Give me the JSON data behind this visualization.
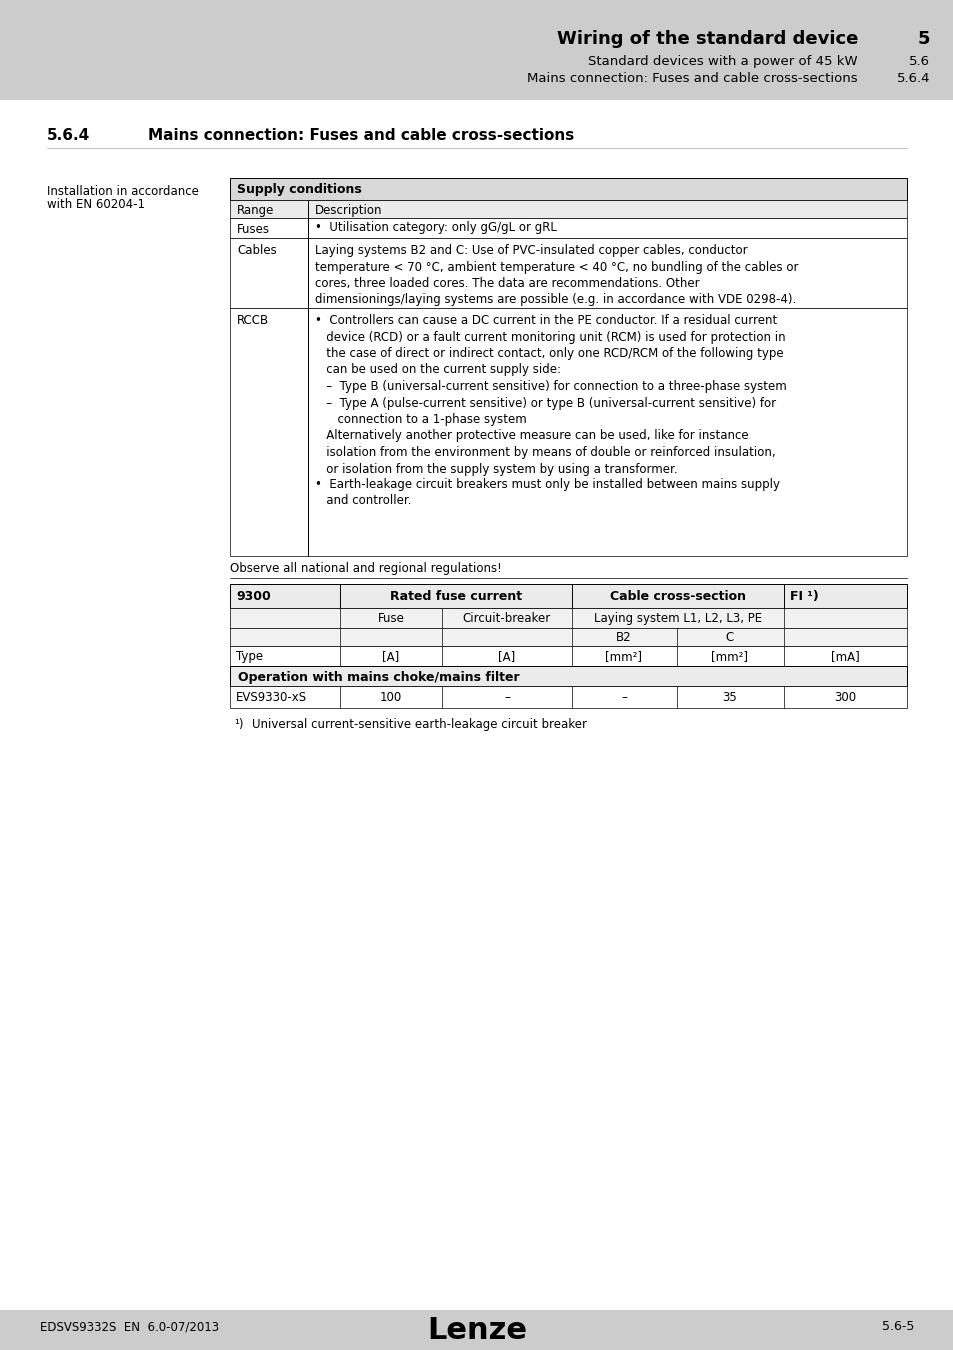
{
  "header_bg": "#cccccc",
  "header_title": "Wiring of the standard device",
  "header_num": "5",
  "header_sub1": "Standard devices with a power of 45 kW",
  "header_sub1_num": "5.6",
  "header_sub2": "Mains connection: Fuses and cable cross-sections",
  "header_sub2_num": "5.6.4",
  "left_label_line1": "Installation in accordance",
  "left_label_line2": "with EN 60204-1",
  "supply_table_header": "Supply conditions",
  "observe_text": "Observe all national and regional regulations!",
  "operation_header": "Operation with mains choke/mains filter",
  "data_row": [
    "EVS9330-xS",
    "100",
    "–",
    "–",
    "35",
    "300"
  ],
  "footnote": "Universal current-sensitive earth-leakage circuit breaker",
  "footer_left": "EDSVS9332S  EN  6.0-07/2013",
  "footer_right": "5.6-5",
  "page_bg": "#ffffff",
  "table_header_bg": "#d8d8d8",
  "row_bg_light": "#ebebeb",
  "white": "#ffffff"
}
